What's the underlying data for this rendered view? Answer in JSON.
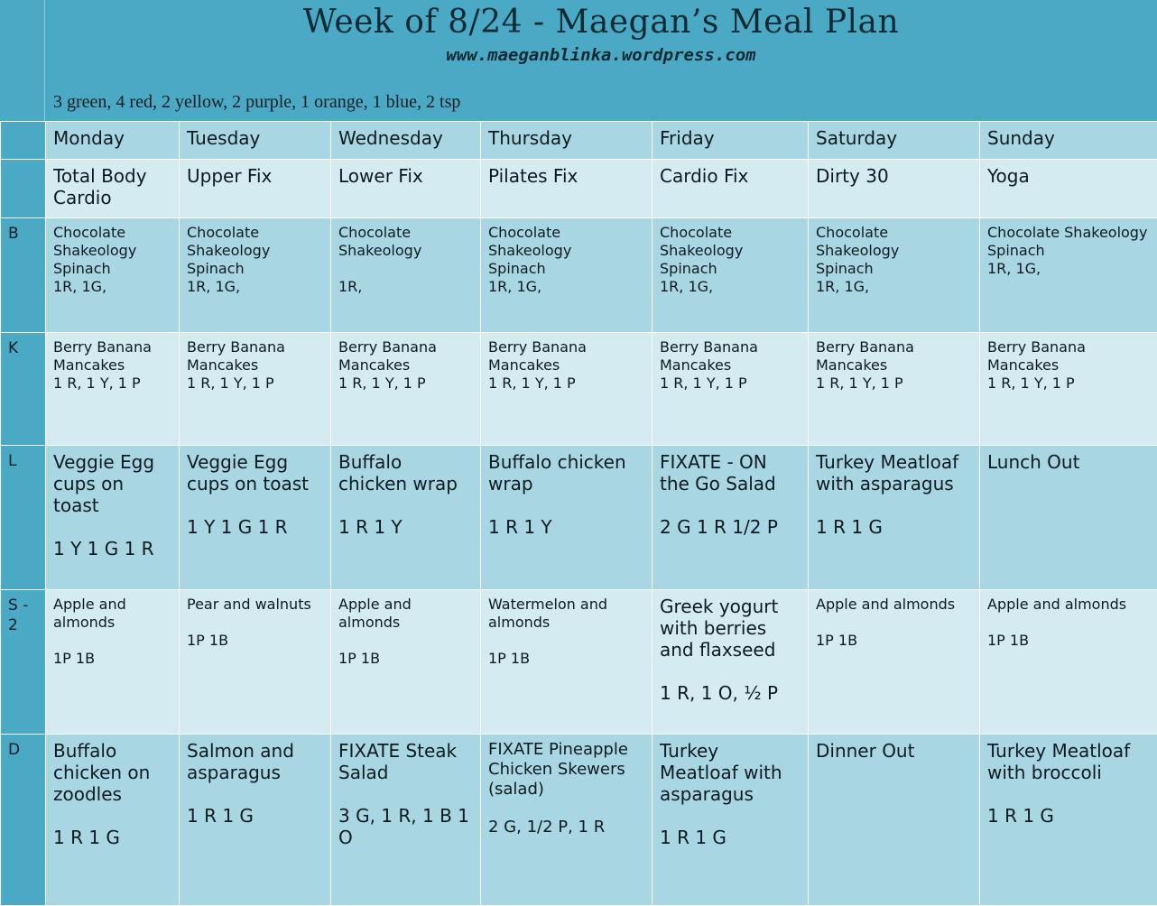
{
  "header": {
    "title": "Week of 8/24 - Maegan’s Meal Plan",
    "url": "www.maeganblinka.wordpress.com",
    "summary": "3 green, 4 red, 2 yellow, 2 purple, 1 orange, 1 blue, 2 tsp"
  },
  "days": [
    "Monday",
    "Tuesday",
    "Wednesday",
    "Thursday",
    "Friday",
    "Saturday",
    "Sunday"
  ],
  "workouts": [
    "Total Body Cardio",
    "Upper Fix",
    "Lower Fix",
    "Pilates Fix",
    "Cardio Fix",
    "Dirty 30",
    "Yoga"
  ],
  "row_labels": {
    "b": "B",
    "k": "K",
    "l": "L",
    "s2": "S - 2",
    "d": "D"
  },
  "meals": {
    "b": [
      {
        "l1": "Chocolate",
        "l2": "Shakeology",
        "l3": "Spinach",
        "l4": "1R, 1G,"
      },
      {
        "l1": "Chocolate",
        "l2": "Shakeology",
        "l3": "Spinach",
        "l4": "1R, 1G,"
      },
      {
        "l1": "Chocolate",
        "l2": "Shakeology",
        "l3": "",
        "l4": "1R,"
      },
      {
        "l1": "Chocolate",
        "l2": "Shakeology",
        "l3": "Spinach",
        "l4": "1R, 1G,"
      },
      {
        "l1": "Chocolate",
        "l2": "Shakeology",
        "l3": "Spinach",
        "l4": "1R, 1G,"
      },
      {
        "l1": "Chocolate",
        "l2": "Shakeology",
        "l3": "Spinach",
        "l4": "1R, 1G,"
      },
      {
        "l1": "Chocolate Shakeology",
        "l2": "Spinach",
        "l3": "1R, 1G,",
        "l4": ""
      }
    ],
    "k": [
      {
        "l1": "Berry Banana",
        "l2": "Mancakes",
        "l3": "1 R, 1 Y, 1 P"
      },
      {
        "l1": "Berry Banana",
        "l2": "Mancakes",
        "l3": "1 R, 1 Y, 1 P"
      },
      {
        "l1": "Berry Banana",
        "l2": "Mancakes",
        "l3": "1 R, 1 Y, 1 P"
      },
      {
        "l1": "Berry Banana",
        "l2": "Mancakes",
        "l3": "1 R, 1 Y, 1 P"
      },
      {
        "l1": "Berry Banana",
        "l2": "Mancakes",
        "l3": "1 R, 1 Y, 1 P"
      },
      {
        "l1": "Berry Banana",
        "l2": "Mancakes",
        "l3": "1 R, 1 Y, 1 P"
      },
      {
        "l1": "Berry Banana",
        "l2": "Mancakes",
        "l3": "1 R, 1 Y, 1 P"
      }
    ],
    "l": [
      {
        "name": "Veggie Egg cups on toast",
        "portions": "1 Y 1 G 1 R"
      },
      {
        "name": "Veggie Egg cups on toast",
        "portions": "1 Y 1 G 1 R"
      },
      {
        "name": "Buffalo chicken wrap",
        "portions": "1 R 1 Y"
      },
      {
        "name": "Buffalo chicken wrap",
        "portions": "1 R 1 Y"
      },
      {
        "name": "FIXATE - ON the Go Salad",
        "portions": "2 G 1 R 1/2 P"
      },
      {
        "name": "Turkey Meatloaf with asparagus",
        "portions": "1 R 1 G"
      },
      {
        "name": "Lunch Out",
        "portions": ""
      }
    ],
    "s2": [
      {
        "name": "Apple and almonds",
        "portions": "1P 1B"
      },
      {
        "name": "Pear and walnuts",
        "portions": "1P 1B"
      },
      {
        "name": "Apple and almonds",
        "portions": "1P 1B"
      },
      {
        "name": "Watermelon and almonds",
        "portions": "1P 1B"
      },
      {
        "name": "Greek yogurt with berries and flaxseed",
        "portions": "1 R, 1 O, ½ P"
      },
      {
        "name": "Apple and almonds",
        "portions": "1P 1B"
      },
      {
        "name": "Apple and almonds",
        "portions": "1P 1B"
      }
    ],
    "d": [
      {
        "name": "Buffalo chicken on zoodles",
        "portions": "1 R 1 G"
      },
      {
        "name": "Salmon and asparagus",
        "portions": "1 R 1 G"
      },
      {
        "name": "FIXATE Steak Salad",
        "portions": "3 G, 1 R, 1 B 1 O"
      },
      {
        "name": "FIXATE Pineapple Chicken Skewers (salad)",
        "portions": "2 G, 1/2 P, 1 R"
      },
      {
        "name": "Turkey Meatloaf with asparagus",
        "portions": "1 R 1 G"
      },
      {
        "name": "Dinner Out",
        "portions": ""
      },
      {
        "name": "Turkey Meatloaf with broccoli",
        "portions": "1 R 1 G"
      }
    ]
  }
}
